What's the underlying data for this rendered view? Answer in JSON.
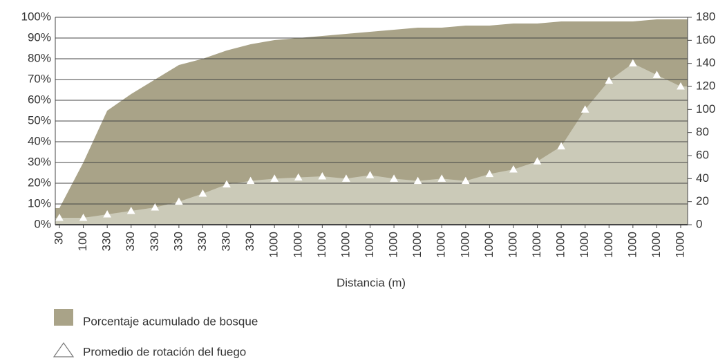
{
  "chart_data": {
    "type": "area-scatter",
    "x_label": "Distancia (m)",
    "categories": [
      "30",
      "100",
      "330",
      "330",
      "330",
      "330",
      "330",
      "330",
      "330",
      "1000",
      "1000",
      "1000",
      "1000",
      "1000",
      "1000",
      "1000",
      "1000",
      "1000",
      "1000",
      "1000",
      "1000",
      "1000",
      "1000",
      "1000",
      "1000",
      "1000",
      "1000"
    ],
    "series": [
      {
        "name": "Porcentaje acumulado de bosque",
        "color": "#a9a388",
        "axis": "y",
        "values": [
          8,
          30,
          55,
          63,
          70,
          77,
          80,
          84,
          87,
          89,
          90,
          91,
          92,
          93,
          94,
          95,
          95,
          96,
          96,
          97,
          97,
          98,
          98,
          98,
          98,
          99,
          99
        ]
      },
      {
        "name": "Promedio de rotación del fuego",
        "color": "#ffffff",
        "axis": "y2",
        "values": [
          6,
          6,
          9,
          12,
          15,
          20,
          27,
          35,
          38,
          40,
          41,
          42,
          40,
          43,
          40,
          38,
          40,
          38,
          44,
          48,
          55,
          68,
          100,
          125,
          140,
          130,
          120
        ]
      }
    ],
    "ylim": [
      0,
      100
    ],
    "yticks": [
      {
        "value": 0,
        "label": "0%"
      },
      {
        "value": 10,
        "label": "10%"
      },
      {
        "value": 20,
        "label": "20%"
      },
      {
        "value": 30,
        "label": "30%"
      },
      {
        "value": 40,
        "label": "40%"
      },
      {
        "value": 50,
        "label": "50%"
      },
      {
        "value": 60,
        "label": "60%"
      },
      {
        "value": 70,
        "label": "70%"
      },
      {
        "value": 80,
        "label": "80%"
      },
      {
        "value": 90,
        "label": "90%"
      },
      {
        "value": 100,
        "label": "100%"
      }
    ],
    "y2lim": [
      0,
      180
    ],
    "y2ticks": [
      0,
      20,
      40,
      60,
      80,
      100,
      120,
      140,
      160,
      180
    ],
    "grid": true
  }
}
